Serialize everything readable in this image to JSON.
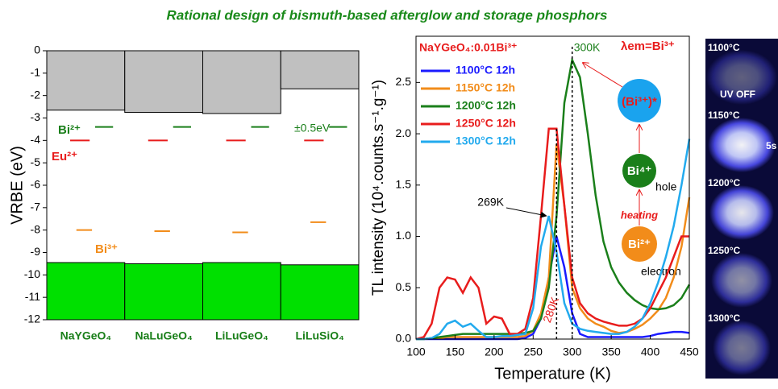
{
  "title": "Rational design of  bismuth-based afterglow and storage phosphors",
  "chart_data": [
    {
      "type": "energy-level",
      "ylabel": "VRBE (eV)",
      "categories": [
        "NaYGeO₄",
        "NaLuGeO₄",
        "LiLuGeO₄",
        "LiLuSiO₄"
      ],
      "ylim": [
        -12,
        0
      ],
      "yticks": [
        0,
        -1,
        -2,
        -3,
        -4,
        -5,
        -6,
        -7,
        -8,
        -9,
        -10,
        -11,
        -12
      ],
      "conduction_band": {
        "color": "#c0c0c0",
        "values": [
          -2.65,
          -2.75,
          -2.8,
          -1.7
        ]
      },
      "valence_band": {
        "color": "#00e000",
        "values": [
          -9.45,
          -9.5,
          -9.45,
          -9.55
        ]
      },
      "series": [
        {
          "name": "Bi²⁺",
          "color": "#1a7f1a",
          "values": [
            -3.4,
            -3.4,
            -3.4,
            -3.4
          ]
        },
        {
          "name": "Eu²⁺",
          "color": "#e81c1c",
          "values": [
            -4.0,
            -4.0,
            -4.0,
            -4.0
          ]
        },
        {
          "name": "Bi³⁺",
          "color": "#f28c1a",
          "values": [
            -8.0,
            -8.05,
            -8.1,
            -7.65
          ]
        }
      ],
      "annotation": "±0.5eV"
    },
    {
      "type": "line",
      "xlabel": "Temperature (K)",
      "ylabel": "TL intensity (10⁴.counts.s⁻¹.g⁻¹)",
      "legend_title": "NaYGeO₄:0.01Bi³⁺",
      "xlim": [
        100,
        450
      ],
      "xticks": [
        100,
        150,
        200,
        250,
        300,
        350,
        400,
        450
      ],
      "ylim": [
        0,
        2.95
      ],
      "yticks": [
        {
          "value": 0,
          "label": "0.0"
        },
        0.5,
        {
          "value": 1,
          "label": "1.0"
        },
        1.5,
        {
          "value": 2,
          "label": "2.0"
        },
        2.5
      ],
      "x": [
        100,
        110,
        120,
        130,
        140,
        150,
        160,
        170,
        180,
        190,
        200,
        210,
        220,
        230,
        240,
        250,
        260,
        270,
        280,
        290,
        300,
        310,
        320,
        330,
        340,
        350,
        360,
        370,
        380,
        390,
        400,
        410,
        420,
        430,
        440,
        450
      ],
      "series": [
        {
          "name": "1100°C 12h",
          "color": "#1a1aff",
          "values": [
            0,
            0,
            0,
            0,
            0,
            0,
            0,
            0,
            0,
            0,
            0,
            0,
            0,
            0,
            0.01,
            0.05,
            0.2,
            0.6,
            1.0,
            0.7,
            0.25,
            0.05,
            0.02,
            0.02,
            0.02,
            0.02,
            0.02,
            0.02,
            0.02,
            0.02,
            0.03,
            0.05,
            0.06,
            0.07,
            0.07,
            0.06
          ]
        },
        {
          "name": "1150°C 12h",
          "color": "#f28c1a",
          "values": [
            0,
            0,
            0.01,
            0.01,
            0.02,
            0.02,
            0.02,
            0.02,
            0.02,
            0.02,
            0.02,
            0.02,
            0.02,
            0.02,
            0.03,
            0.08,
            0.25,
            0.6,
            1.9,
            1.3,
            0.5,
            0.3,
            0.2,
            0.15,
            0.12,
            0.08,
            0.06,
            0.07,
            0.1,
            0.14,
            0.2,
            0.28,
            0.4,
            0.6,
            0.9,
            1.38
          ]
        },
        {
          "name": "1200°C 12h",
          "color": "#1a7f1a",
          "values": [
            0,
            0,
            0.01,
            0.02,
            0.03,
            0.04,
            0.05,
            0.05,
            0.05,
            0.05,
            0.05,
            0.05,
            0.05,
            0.05,
            0.06,
            0.08,
            0.2,
            0.5,
            1.2,
            2.3,
            2.72,
            2.55,
            2.0,
            1.4,
            0.95,
            0.7,
            0.55,
            0.45,
            0.38,
            0.33,
            0.3,
            0.29,
            0.3,
            0.33,
            0.4,
            0.53
          ]
        },
        {
          "name": "1250°C 12h",
          "color": "#e81c1c",
          "values": [
            0,
            0.02,
            0.15,
            0.5,
            0.6,
            0.58,
            0.45,
            0.6,
            0.5,
            0.15,
            0.22,
            0.2,
            0.05,
            0.05,
            0.1,
            0.4,
            1.2,
            2.05,
            2.05,
            1.3,
            0.6,
            0.35,
            0.25,
            0.2,
            0.17,
            0.15,
            0.13,
            0.13,
            0.15,
            0.2,
            0.3,
            0.45,
            0.6,
            0.8,
            1.0,
            1.0
          ]
        },
        {
          "name": "1300°C 12h",
          "color": "#22aaee",
          "values": [
            0,
            0,
            0.01,
            0.05,
            0.15,
            0.18,
            0.12,
            0.15,
            0.08,
            0.02,
            0.02,
            0.03,
            0.03,
            0.04,
            0.05,
            0.3,
            0.9,
            1.2,
            0.85,
            0.35,
            0.15,
            0.1,
            0.08,
            0.07,
            0.06,
            0.05,
            0.05,
            0.07,
            0.12,
            0.2,
            0.35,
            0.55,
            0.8,
            1.1,
            1.5,
            1.95
          ]
        }
      ],
      "markers": [
        {
          "x": 300,
          "label": "300K"
        },
        {
          "x": 280,
          "label": "280K"
        },
        {
          "x": 269,
          "label": "269K"
        }
      ]
    }
  ],
  "diagram": {
    "emission": "λem=Bi³⁺",
    "excited": "(Bi³⁺)*",
    "hole_state": "Bi⁴⁺",
    "hole": "hole",
    "heating": "heating",
    "electron_state": "Bi²⁺",
    "electron": "electron"
  },
  "photos": {
    "labels": [
      "1100°C",
      "1150°C",
      "1200°C",
      "1250°C",
      "1300°C"
    ],
    "uv_off": "UV OFF",
    "time": "5s"
  }
}
